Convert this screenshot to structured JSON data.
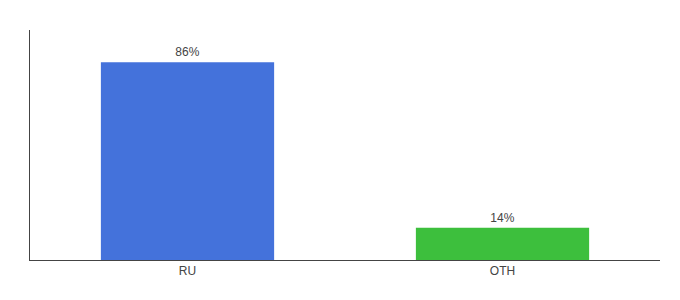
{
  "chart_data": {
    "type": "bar",
    "categories": [
      "RU",
      "OTH"
    ],
    "values": [
      86,
      14
    ],
    "value_labels": [
      "86%",
      "14%"
    ],
    "colors": [
      "#4472db",
      "#3dbf3d"
    ],
    "ylim": [
      0,
      100
    ],
    "data_labels": true,
    "tick_labels": "x",
    "grid": false
  }
}
